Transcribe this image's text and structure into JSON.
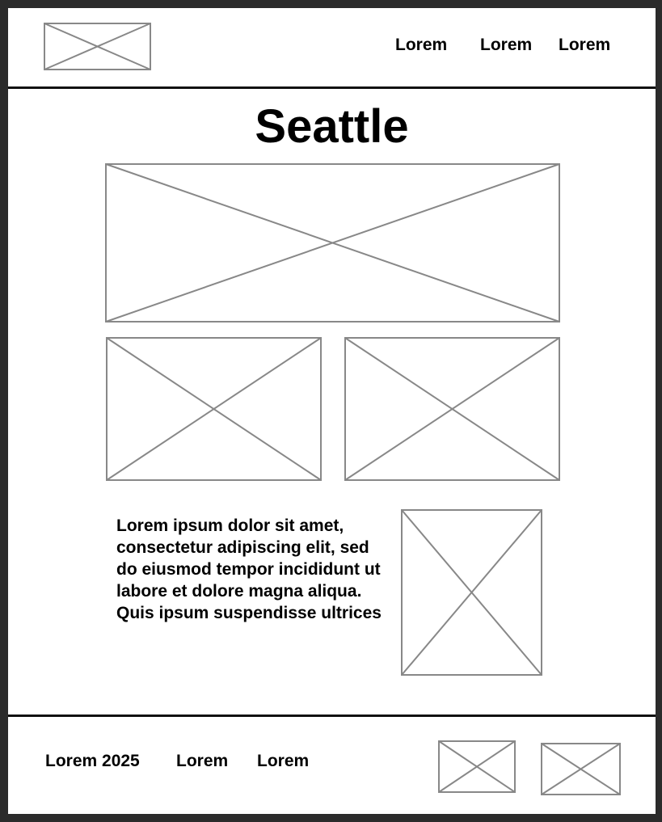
{
  "header": {
    "logo_icon": "image-placeholder-icon",
    "nav": [
      "Lorem",
      "Lorem",
      "Lorem"
    ]
  },
  "main": {
    "title": "Seattle",
    "paragraph": "Lorem ipsum dolor sit amet, consectetur adipiscing elit, sed do eiusmod tempor incididunt ut labore et dolore magna aliqua. Quis ipsum suspendisse ultrices"
  },
  "footer": {
    "links": [
      "Lorem 2025",
      "Lorem",
      "Lorem"
    ]
  },
  "colors": {
    "placeholder_stroke": "#888888",
    "background": "#ffffff",
    "outer": "#2b2b2b"
  }
}
